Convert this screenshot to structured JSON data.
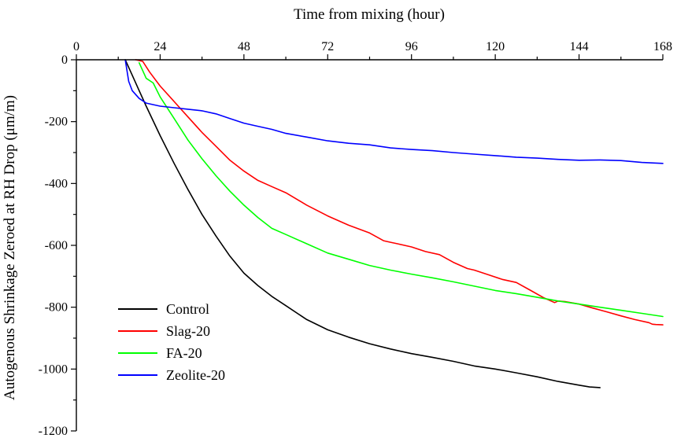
{
  "chart_data": {
    "type": "line",
    "xlabel": "Time from mixing (hour)",
    "ylabel": "Autogenous Shrinkage Zeroed at RH Drop (μm/m)",
    "xlim": [
      0,
      168
    ],
    "ylim": [
      -1200,
      0
    ],
    "x_ticks": [
      "0",
      "24",
      "48",
      "72",
      "96",
      "120",
      "144",
      "168"
    ],
    "y_ticks": [
      "0",
      "-200",
      "-400",
      "-600",
      "-800",
      "-1000",
      "-1200"
    ],
    "x_axis_position": "top",
    "grid": false,
    "legend_position": "bottom-left",
    "series": [
      {
        "name": "Control",
        "color": "#000000",
        "x": [
          14,
          16,
          18,
          20,
          24,
          28,
          32,
          36,
          40,
          44,
          48,
          52,
          56,
          60,
          66,
          72,
          78,
          84,
          90,
          96,
          102,
          108,
          114,
          120,
          126,
          132,
          138,
          144,
          147,
          150
        ],
        "y": [
          0,
          -50,
          -100,
          -150,
          -245,
          -335,
          -420,
          -500,
          -570,
          -635,
          -690,
          -730,
          -765,
          -795,
          -840,
          -873,
          -897,
          -918,
          -935,
          -950,
          -962,
          -975,
          -990,
          -1000,
          -1012,
          -1025,
          -1040,
          -1052,
          -1058,
          -1060
        ]
      },
      {
        "name": "Slag-20",
        "color": "#ff0000",
        "x": [
          17,
          19,
          21,
          24,
          28,
          32,
          36,
          40,
          44,
          48,
          52,
          56,
          60,
          66,
          72,
          78,
          84,
          88,
          90,
          92,
          96,
          100,
          104,
          108,
          112,
          114,
          118,
          122,
          126,
          130,
          134,
          136,
          137,
          138,
          140,
          144,
          148,
          152,
          156,
          160,
          164,
          165,
          166,
          168
        ],
        "y": [
          0,
          -5,
          -40,
          -85,
          -135,
          -185,
          -235,
          -280,
          -325,
          -360,
          -390,
          -410,
          -430,
          -470,
          -505,
          -535,
          -560,
          -585,
          -590,
          -595,
          -605,
          -620,
          -630,
          -655,
          -675,
          -680,
          -695,
          -710,
          -720,
          -745,
          -770,
          -780,
          -785,
          -780,
          -782,
          -790,
          -803,
          -815,
          -828,
          -840,
          -850,
          -855,
          -856,
          -857
        ]
      },
      {
        "name": "FA-20",
        "color": "#00ff00",
        "x": [
          18,
          19,
          20,
          22,
          24,
          28,
          32,
          36,
          40,
          44,
          48,
          52,
          56,
          60,
          66,
          72,
          78,
          84,
          90,
          96,
          102,
          108,
          114,
          120,
          126,
          132,
          136,
          138,
          144,
          150,
          156,
          162,
          168
        ],
        "y": [
          -10,
          -35,
          -60,
          -75,
          -120,
          -190,
          -260,
          -320,
          -375,
          -425,
          -470,
          -510,
          -545,
          -565,
          -595,
          -625,
          -645,
          -665,
          -680,
          -693,
          -705,
          -718,
          -732,
          -746,
          -756,
          -768,
          -776,
          -780,
          -790,
          -800,
          -810,
          -820,
          -830
        ]
      },
      {
        "name": "Zeolite-20",
        "color": "#0000ff",
        "x": [
          14,
          15,
          16,
          18,
          20,
          24,
          28,
          32,
          36,
          40,
          44,
          48,
          52,
          56,
          60,
          66,
          72,
          78,
          84,
          90,
          96,
          102,
          108,
          114,
          120,
          126,
          132,
          138,
          144,
          150,
          156,
          162,
          168
        ],
        "y": [
          0,
          -70,
          -100,
          -125,
          -140,
          -150,
          -155,
          -160,
          -165,
          -175,
          -190,
          -205,
          -215,
          -225,
          -238,
          -250,
          -262,
          -270,
          -275,
          -285,
          -290,
          -294,
          -300,
          -305,
          -310,
          -315,
          -318,
          -322,
          -325,
          -324,
          -326,
          -332,
          -335
        ]
      }
    ]
  }
}
